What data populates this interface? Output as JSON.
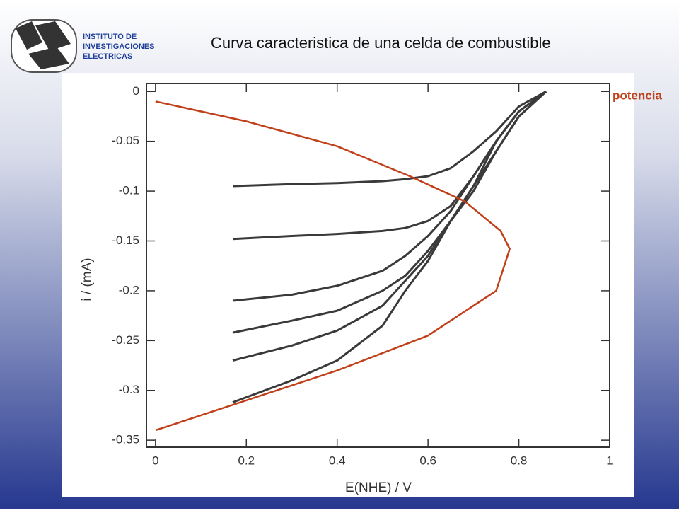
{
  "header": {
    "org_lines": [
      "INSTITUTO DE",
      "INVESTIGACIONES",
      "ELECTRICAS"
    ]
  },
  "chart_data": {
    "type": "line",
    "title": "Curva caracteristica de una celda de combustible",
    "x_label": "E(NHE) / V",
    "y_label": "i / (mA)",
    "x": [
      0.17,
      0.3,
      0.4,
      0.5,
      0.55,
      0.6,
      0.65,
      0.7,
      0.75,
      0.8,
      0.86
    ],
    "series": [
      {
        "color": "#3a3a3a",
        "values": [
          -0.095,
          -0.093,
          -0.092,
          -0.09,
          -0.088,
          -0.085,
          -0.077,
          -0.06,
          -0.04,
          -0.015,
          0
        ]
      },
      {
        "color": "#3a3a3a",
        "values": [
          -0.148,
          -0.145,
          -0.143,
          -0.14,
          -0.137,
          -0.13,
          -0.115,
          -0.085,
          -0.05,
          -0.02,
          0
        ]
      },
      {
        "color": "#3a3a3a",
        "values": [
          -0.21,
          -0.204,
          -0.195,
          -0.18,
          -0.165,
          -0.145,
          -0.12,
          -0.085,
          -0.05,
          -0.02,
          0
        ]
      },
      {
        "color": "#3a3a3a",
        "values": [
          -0.242,
          -0.23,
          -0.22,
          -0.2,
          -0.185,
          -0.16,
          -0.13,
          -0.1,
          -0.06,
          -0.025,
          0
        ]
      },
      {
        "color": "#3a3a3a",
        "values": [
          -0.27,
          -0.255,
          -0.24,
          -0.215,
          -0.19,
          -0.165,
          -0.13,
          -0.095,
          -0.06,
          -0.025,
          0
        ]
      },
      {
        "color": "#3a3a3a",
        "values": [
          -0.312,
          -0.29,
          -0.27,
          -0.235,
          -0.2,
          -0.17,
          -0.13,
          -0.095,
          -0.05,
          -0.02,
          0
        ]
      },
      {
        "name": "potencia",
        "color": "#c0401a",
        "x": [
          0,
          0.2,
          0.4,
          0.56,
          0.68,
          0.76,
          0.78,
          0.75,
          0.6,
          0.4,
          0.2,
          0
        ],
        "values": [
          -0.01,
          -0.03,
          -0.055,
          -0.085,
          -0.11,
          -0.14,
          -0.158,
          -0.2,
          -0.245,
          -0.28,
          -0.31,
          -0.34
        ]
      }
    ],
    "xlim": [
      -0.02,
      1.0
    ],
    "ylim": [
      -0.357,
      0.008
    ],
    "xticks": [
      0,
      0.2,
      0.4,
      0.6,
      0.8,
      1
    ],
    "yticks": [
      0,
      -0.05,
      -0.1,
      -0.15,
      -0.2,
      -0.25,
      -0.3,
      -0.35
    ]
  }
}
